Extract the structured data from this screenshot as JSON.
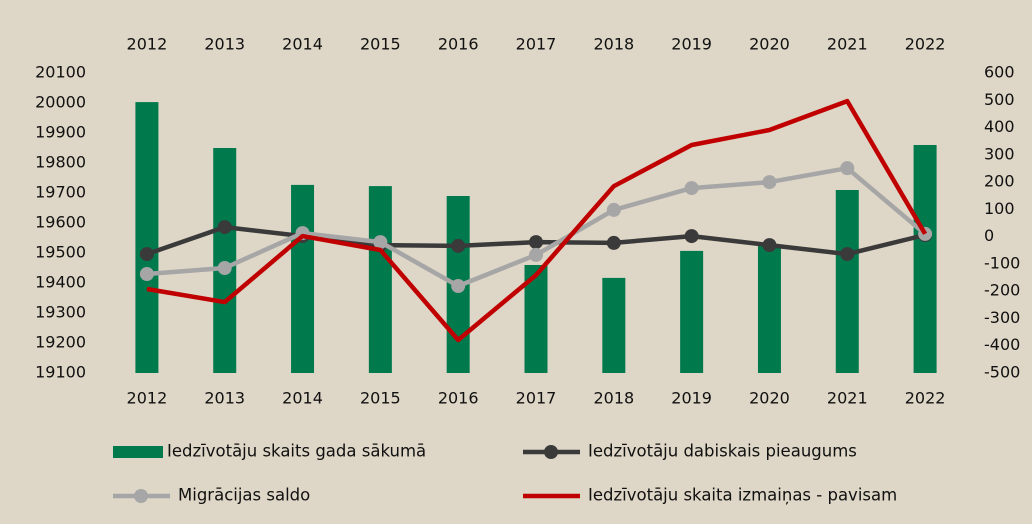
{
  "chart_data": {
    "type": "bar-line",
    "categories": [
      "2012",
      "2013",
      "2014",
      "2015",
      "2016",
      "2017",
      "2018",
      "2019",
      "2020",
      "2021",
      "2022"
    ],
    "series": [
      {
        "name": "Iedzīvotāju skaits gada sākumā",
        "type": "bar",
        "color": "#007a4d",
        "values": [
          20003,
          19850,
          19727,
          19723,
          19690,
          19460,
          19417,
          19507,
          19527,
          19710,
          19860
        ]
      },
      {
        "name": "Iedzīvotāju dabiskais pieaugums",
        "type": "line",
        "axis": "y2",
        "marker": true,
        "color": "#3a3a3a",
        "values": [
          -64,
          35,
          2,
          -31,
          -34,
          -20,
          -23,
          2,
          -31,
          -64,
          6
        ]
      },
      {
        "name": "Migrācijas saldo",
        "type": "line",
        "axis": "y2",
        "marker": true,
        "color": "#a6a6a6",
        "values": [
          -137,
          -115,
          13,
          -20,
          -181,
          -67,
          98,
          178,
          200,
          251,
          10
        ]
      },
      {
        "name": "Iedzīvotāju skaita izmaiņas - pavisam",
        "type": "line",
        "axis": "y2",
        "marker": false,
        "color": "#c00000",
        "values": [
          -192,
          -240,
          2,
          -49,
          -379,
          -141,
          185,
          336,
          391,
          497,
          10
        ]
      }
    ],
    "ylim": [
      19100,
      20100
    ],
    "yticks": [
      19100,
      19200,
      19300,
      19400,
      19500,
      19600,
      19700,
      19800,
      19900,
      20000,
      20100
    ],
    "y2lim": [
      -500,
      600
    ],
    "y2ticks": [
      -500,
      -400,
      -300,
      -200,
      -100,
      0,
      100,
      200,
      300,
      400,
      500,
      600
    ],
    "legend": "bottom"
  }
}
